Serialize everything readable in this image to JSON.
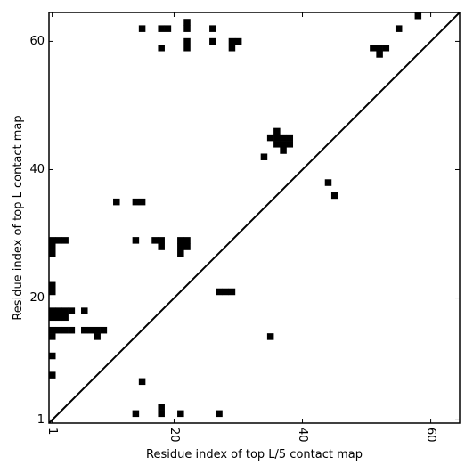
{
  "chart_data": {
    "type": "heatmap",
    "xlabel": "Residue index of top L/5 contact map",
    "ylabel": "Residue index of top L contact map",
    "xlim": [
      0.5,
      64.5
    ],
    "ylim": [
      0.5,
      64.5
    ],
    "x_ticks": [
      1,
      20,
      40,
      60
    ],
    "y_ticks": [
      1,
      20,
      40,
      60
    ],
    "x_tick_rotation": -90,
    "diagonal": true,
    "cell_color": "#000000",
    "cells": [
      [
        15,
        62
      ],
      [
        18,
        62
      ],
      [
        19,
        62
      ],
      [
        22,
        62
      ],
      [
        22,
        63
      ],
      [
        26,
        62
      ],
      [
        18,
        59
      ],
      [
        22,
        59
      ],
      [
        22,
        60
      ],
      [
        26,
        60
      ],
      [
        29,
        59
      ],
      [
        29,
        60
      ],
      [
        30,
        60
      ],
      [
        51,
        59
      ],
      [
        52,
        59
      ],
      [
        53,
        59
      ],
      [
        52,
        58
      ],
      [
        55,
        62
      ],
      [
        58,
        64
      ],
      [
        35,
        45
      ],
      [
        36,
        45
      ],
      [
        37,
        45
      ],
      [
        38,
        45
      ],
      [
        36,
        46
      ],
      [
        36,
        44
      ],
      [
        37,
        44
      ],
      [
        38,
        44
      ],
      [
        37,
        43
      ],
      [
        34,
        42
      ],
      [
        44,
        38
      ],
      [
        45,
        36
      ],
      [
        11,
        35
      ],
      [
        14,
        35
      ],
      [
        15,
        35
      ],
      [
        1,
        29
      ],
      [
        2,
        29
      ],
      [
        3,
        29
      ],
      [
        1,
        28
      ],
      [
        1,
        27
      ],
      [
        14,
        29
      ],
      [
        17,
        29
      ],
      [
        18,
        29
      ],
      [
        18,
        28
      ],
      [
        21,
        29
      ],
      [
        22,
        29
      ],
      [
        21,
        28
      ],
      [
        22,
        28
      ],
      [
        21,
        27
      ],
      [
        1,
        22
      ],
      [
        1,
        21
      ],
      [
        27,
        21
      ],
      [
        28,
        21
      ],
      [
        29,
        21
      ],
      [
        1,
        18
      ],
      [
        2,
        18
      ],
      [
        3,
        18
      ],
      [
        4,
        18
      ],
      [
        6,
        18
      ],
      [
        1,
        17
      ],
      [
        2,
        17
      ],
      [
        3,
        17
      ],
      [
        1,
        15
      ],
      [
        2,
        15
      ],
      [
        3,
        15
      ],
      [
        4,
        15
      ],
      [
        6,
        15
      ],
      [
        7,
        15
      ],
      [
        8,
        15
      ],
      [
        9,
        15
      ],
      [
        1,
        14
      ],
      [
        8,
        14
      ],
      [
        35,
        14
      ],
      [
        1,
        11
      ],
      [
        1,
        8
      ],
      [
        15,
        7
      ],
      [
        14,
        2
      ],
      [
        18,
        3
      ],
      [
        18,
        2
      ],
      [
        21,
        2
      ],
      [
        27,
        2
      ]
    ]
  }
}
